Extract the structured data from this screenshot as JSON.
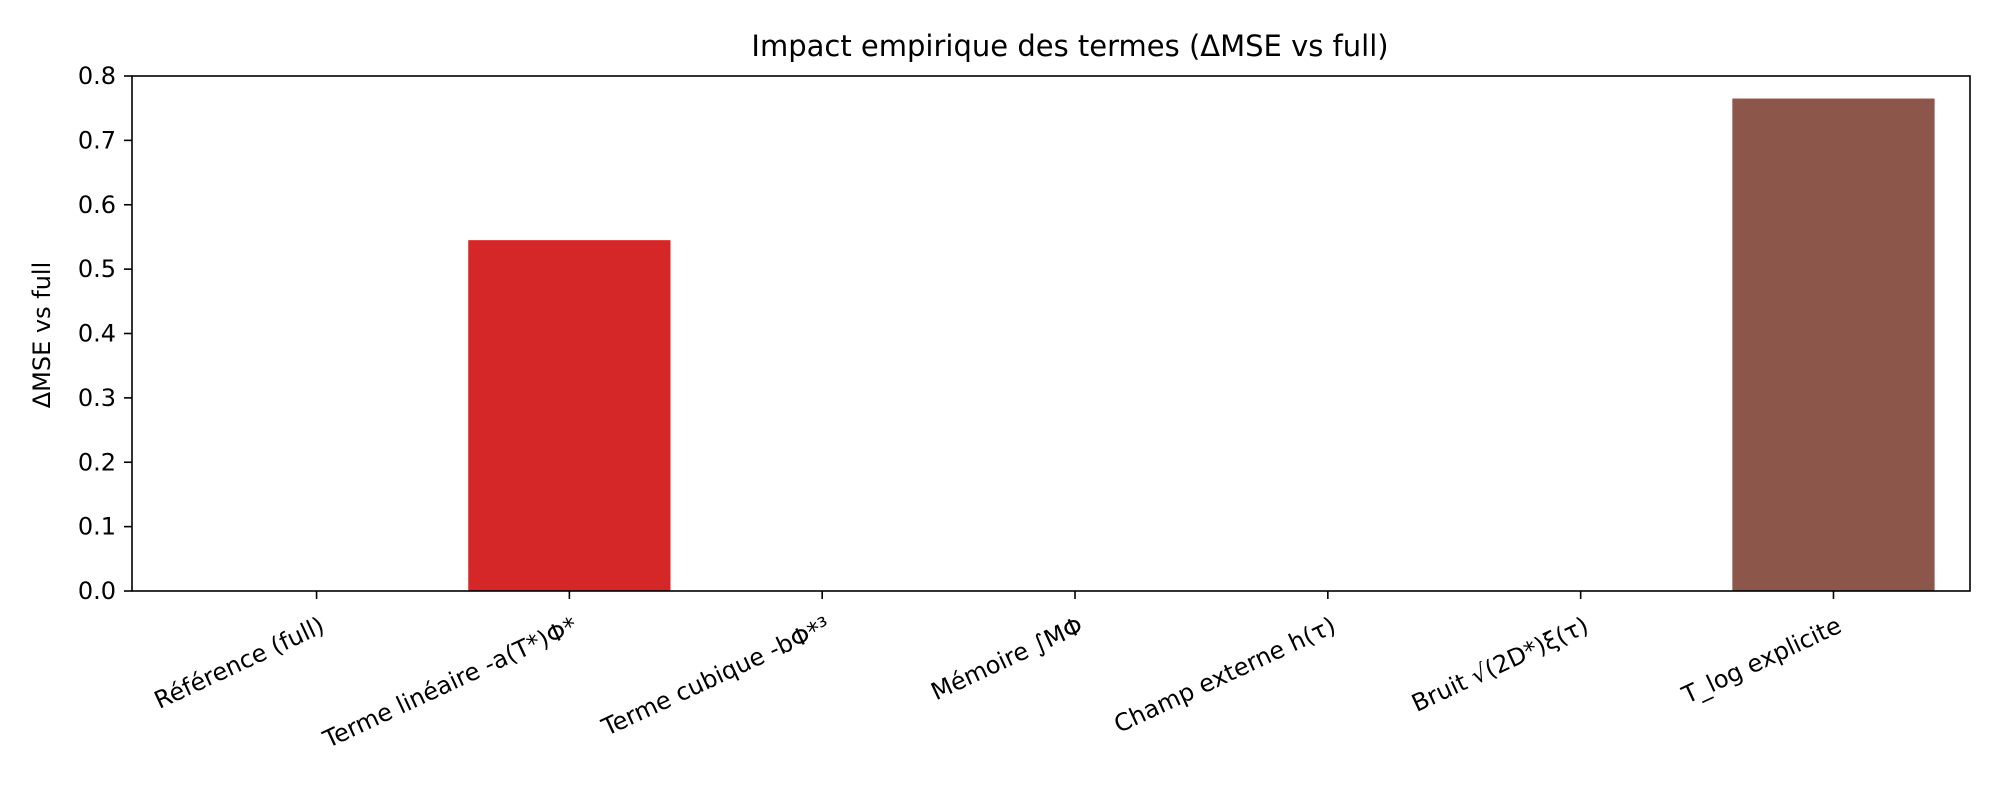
{
  "chart_data": {
    "type": "bar",
    "title": "Impact empirique des termes (ΔMSE vs full)",
    "xlabel": "",
    "ylabel": "ΔMSE vs full",
    "ylim": [
      0,
      0.8
    ],
    "yticks": [
      "0.0",
      "0.1",
      "0.2",
      "0.3",
      "0.4",
      "0.5",
      "0.6",
      "0.7",
      "0.8"
    ],
    "grid": false,
    "legend": "none",
    "categories": [
      "Référence (full)",
      "Terme linéaire -a(T*)Φ*",
      "Terme cubique -bΦ*³",
      "Mémoire ∫MΦ",
      "Champ externe h(τ)",
      "Bruit √(2D*)ξ(τ)",
      "T_log explicite"
    ],
    "values": [
      0.0,
      0.545,
      0.0,
      0.0,
      0.0,
      0.0,
      0.765
    ],
    "colors": [
      "#1f77b4",
      "#d62728",
      "#2ca02c",
      "#9467bd",
      "#ff7f0e",
      "#17becf",
      "#8c564b"
    ]
  }
}
